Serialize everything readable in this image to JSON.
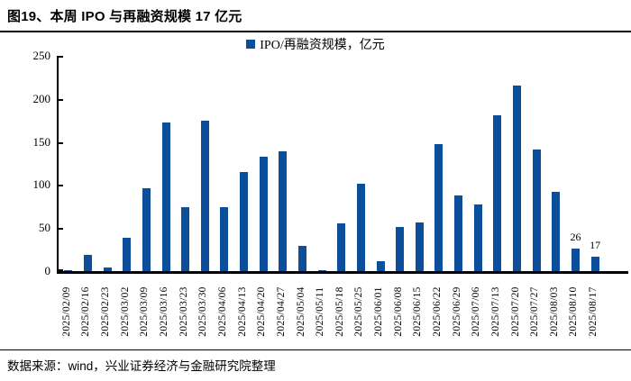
{
  "title": "图19、本周 IPO 与再融资规模 17 亿元",
  "source": "数据来源：wind，兴业证券经济与金融研究院整理",
  "colors": {
    "bar": "#0B4F9C",
    "axis": "#000000",
    "background": "#FFFFFF"
  },
  "chart_data": {
    "type": "bar",
    "title": "图19、本周 IPO 与再融资规模 17 亿元",
    "legend": "IPO/再融资规模，亿元",
    "legend_position": "top-center",
    "grid": "off",
    "ylim": [
      0,
      250
    ],
    "yticks": [
      0,
      50,
      100,
      150,
      200,
      250
    ],
    "bar_color": "#0B4F9C",
    "categories": [
      "2025/02/09",
      "2025/02/16",
      "2025/02/23",
      "2025/03/02",
      "2025/03/09",
      "2025/03/16",
      "2025/03/23",
      "2025/03/30",
      "2025/04/06",
      "2025/04/13",
      "2025/04/20",
      "2025/04/27",
      "2025/05/04",
      "2025/05/11",
      "2025/05/18",
      "2025/05/25",
      "2025/06/01",
      "2025/06/08",
      "2025/06/15",
      "2025/06/22",
      "2025/06/29",
      "2025/07/06",
      "2025/07/13",
      "2025/07/20",
      "2025/07/27",
      "2025/08/03",
      "2025/08/10",
      "2025/08/17"
    ],
    "values": [
      1,
      19,
      4,
      39,
      96,
      173,
      74,
      175,
      74,
      115,
      133,
      139,
      29,
      1,
      55,
      101,
      11,
      51,
      57,
      148,
      88,
      77,
      181,
      216,
      141,
      92,
      26,
      17
    ],
    "bar_value_labels": {
      "26": "26",
      "27": "17"
    }
  }
}
